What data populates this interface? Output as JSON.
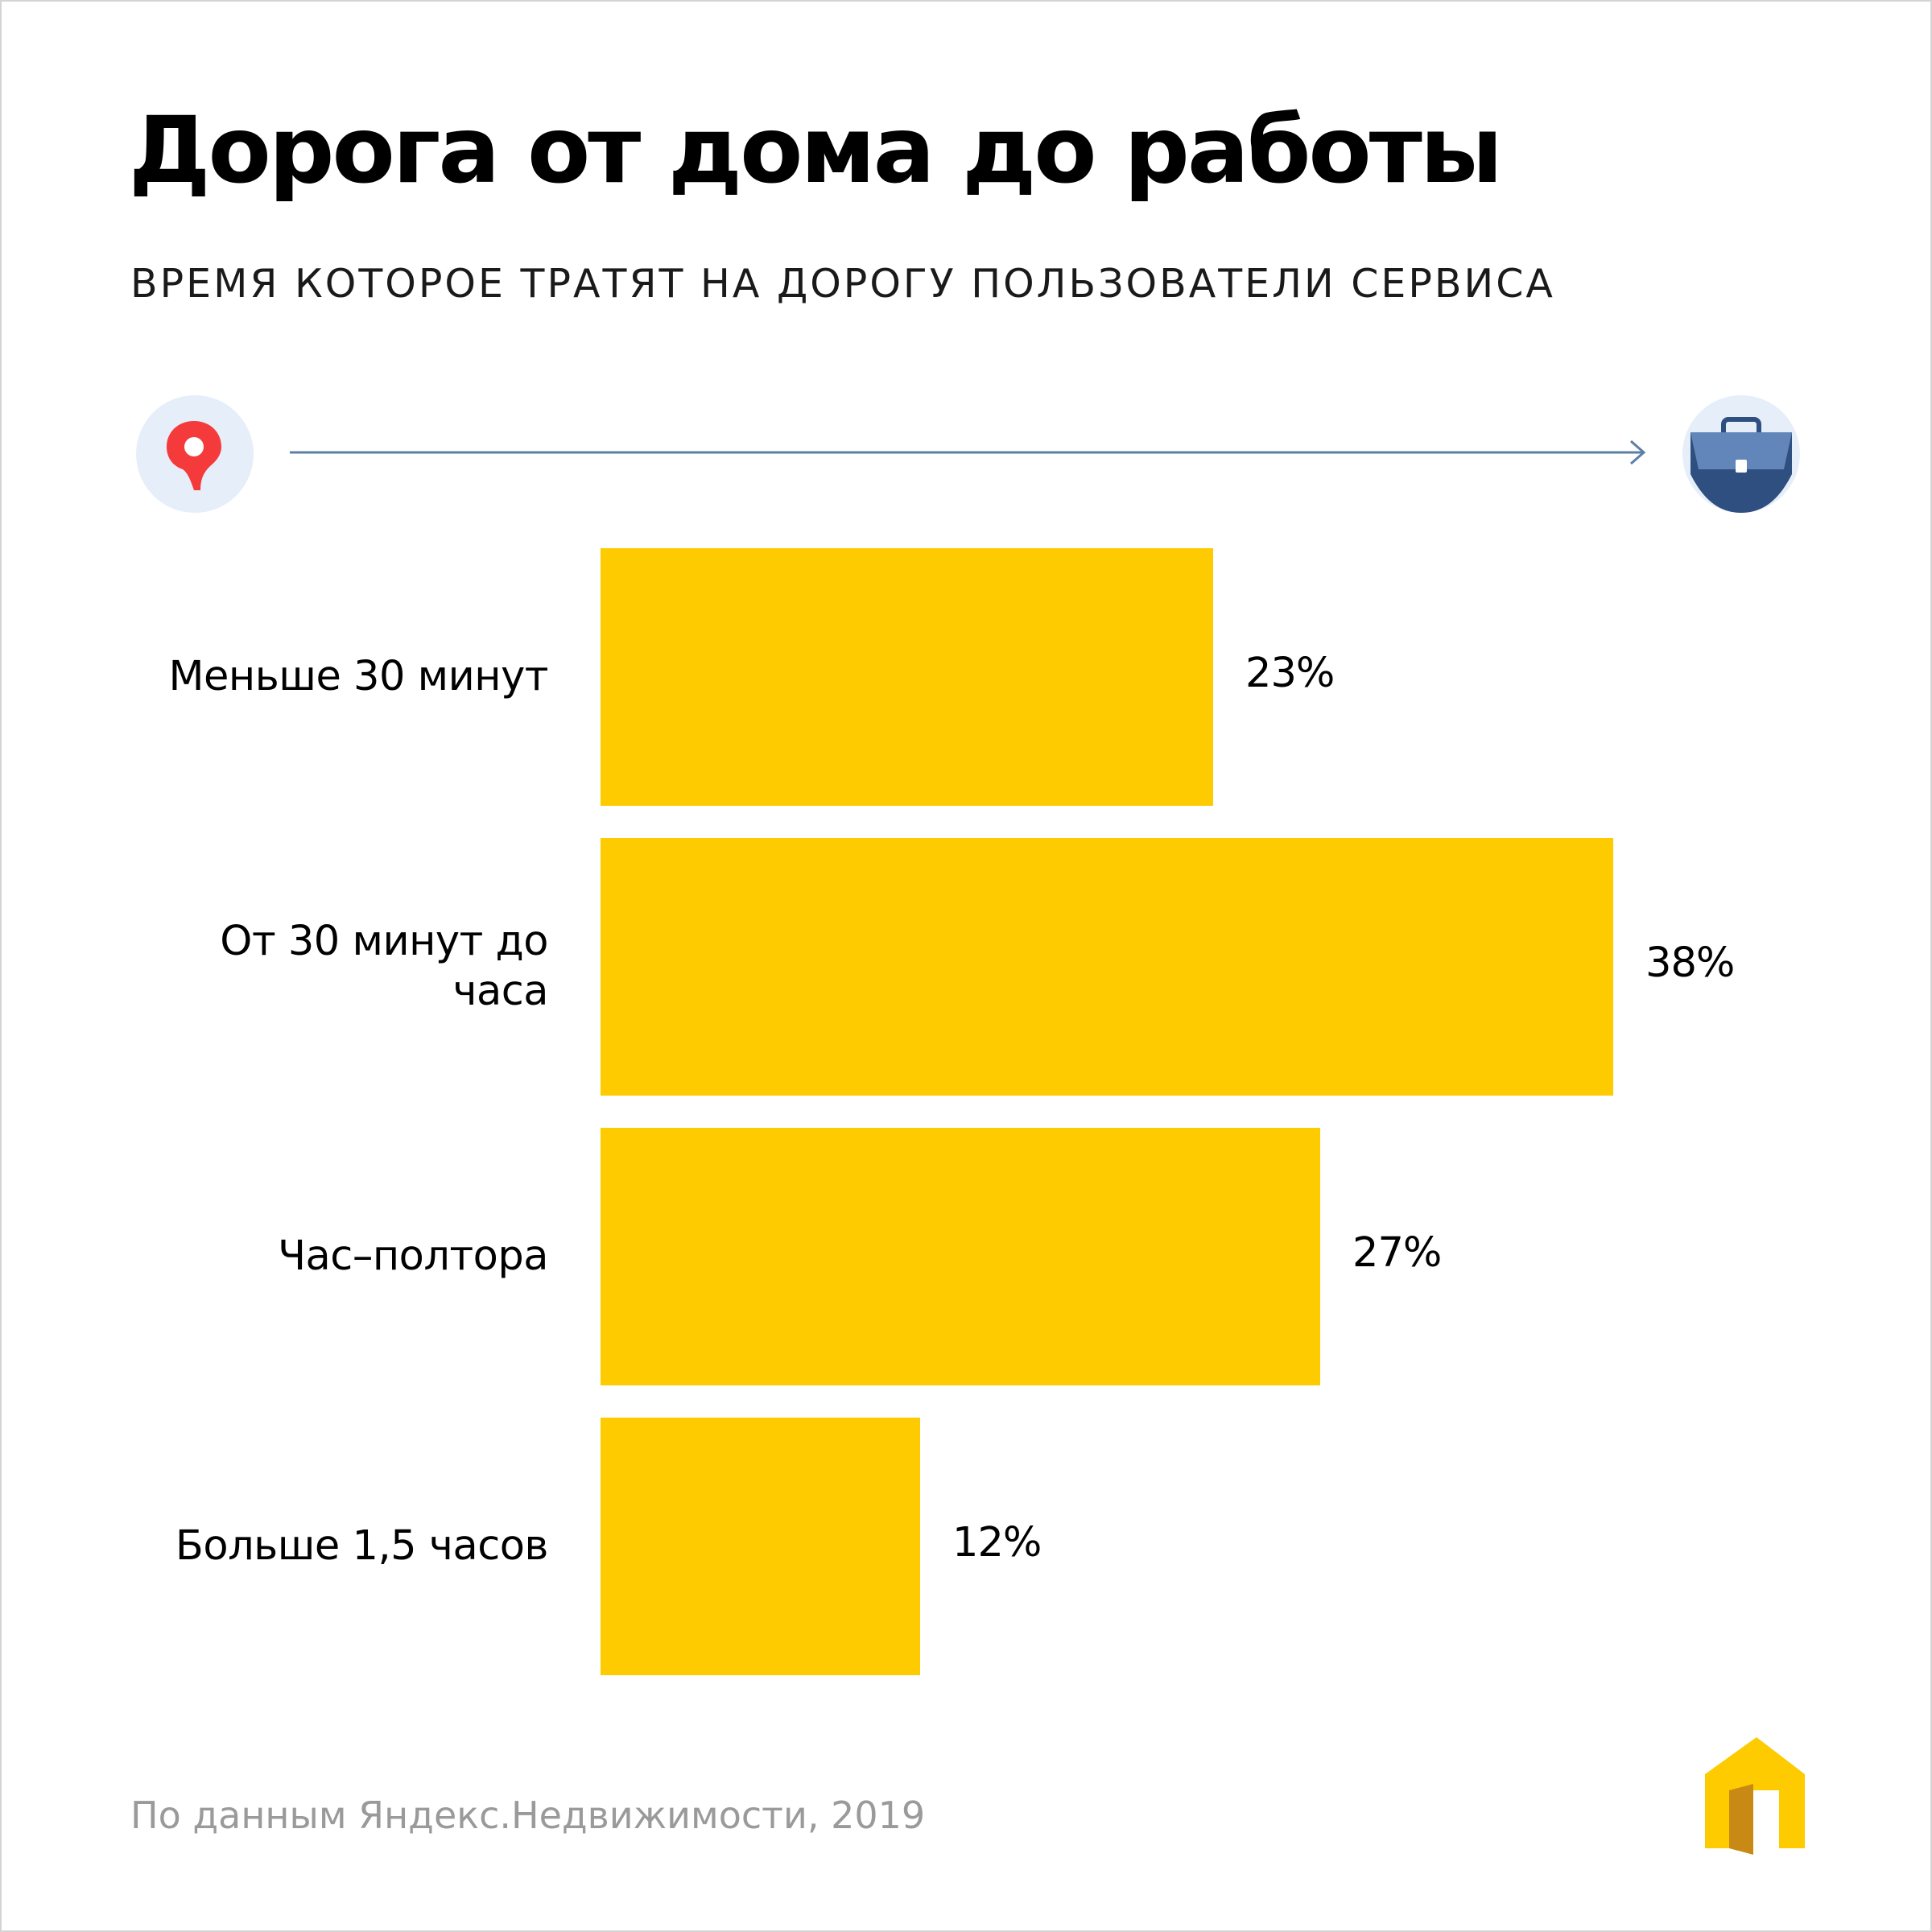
{
  "header": {
    "title": "Дорога от дома до работы",
    "subtitle": "ВРЕМЯ КОТОРОЕ ТРАТЯТ НА ДОРОГУ ПОЛЬЗОВАТЕЛИ СЕРВИСА"
  },
  "route": {
    "start_icon": "yandex-maps-pin-icon",
    "end_icon": "briefcase-icon",
    "arrow_icon": "arrow-right-icon"
  },
  "chart_data": {
    "type": "bar",
    "orientation": "horizontal",
    "title": "Дорога от дома до работы",
    "subtitle": "ВРЕМЯ КОТОРОЕ ТРАТЯТ НА ДОРОГУ ПОЛЬЗОВАТЕЛИ СЕРВИСА",
    "categories": [
      "Меньше 30 минут",
      "От 30 минут до часа",
      "Час–полтора",
      "Больше 1,5 часов"
    ],
    "category_lines": [
      [
        "Меньше 30 минут"
      ],
      [
        "От 30 минут до",
        "часа"
      ],
      [
        "Час–полтора"
      ],
      [
        "Больше 1,5 часов"
      ]
    ],
    "values": [
      23,
      38,
      27,
      12
    ],
    "value_labels": [
      "23%",
      "38%",
      "27%",
      "12%"
    ],
    "unit": "%",
    "xlim": [
      0,
      38
    ],
    "xlabel": "",
    "ylabel": "",
    "grid": false,
    "legend": "none"
  },
  "footer": {
    "source": "По данным Яндекс.Недвижимости, 2019",
    "logo_icon": "yandex-realty-logo-icon"
  },
  "colors": {
    "bar": "#fdcb00",
    "arrow": "#5d7fa6",
    "icon_circle": "#e6eef9",
    "pin_red": "#f43a3a",
    "briefcase_dark": "#2f4f80",
    "briefcase_light": "#6286b9",
    "footer_text": "#9a9a9a"
  }
}
